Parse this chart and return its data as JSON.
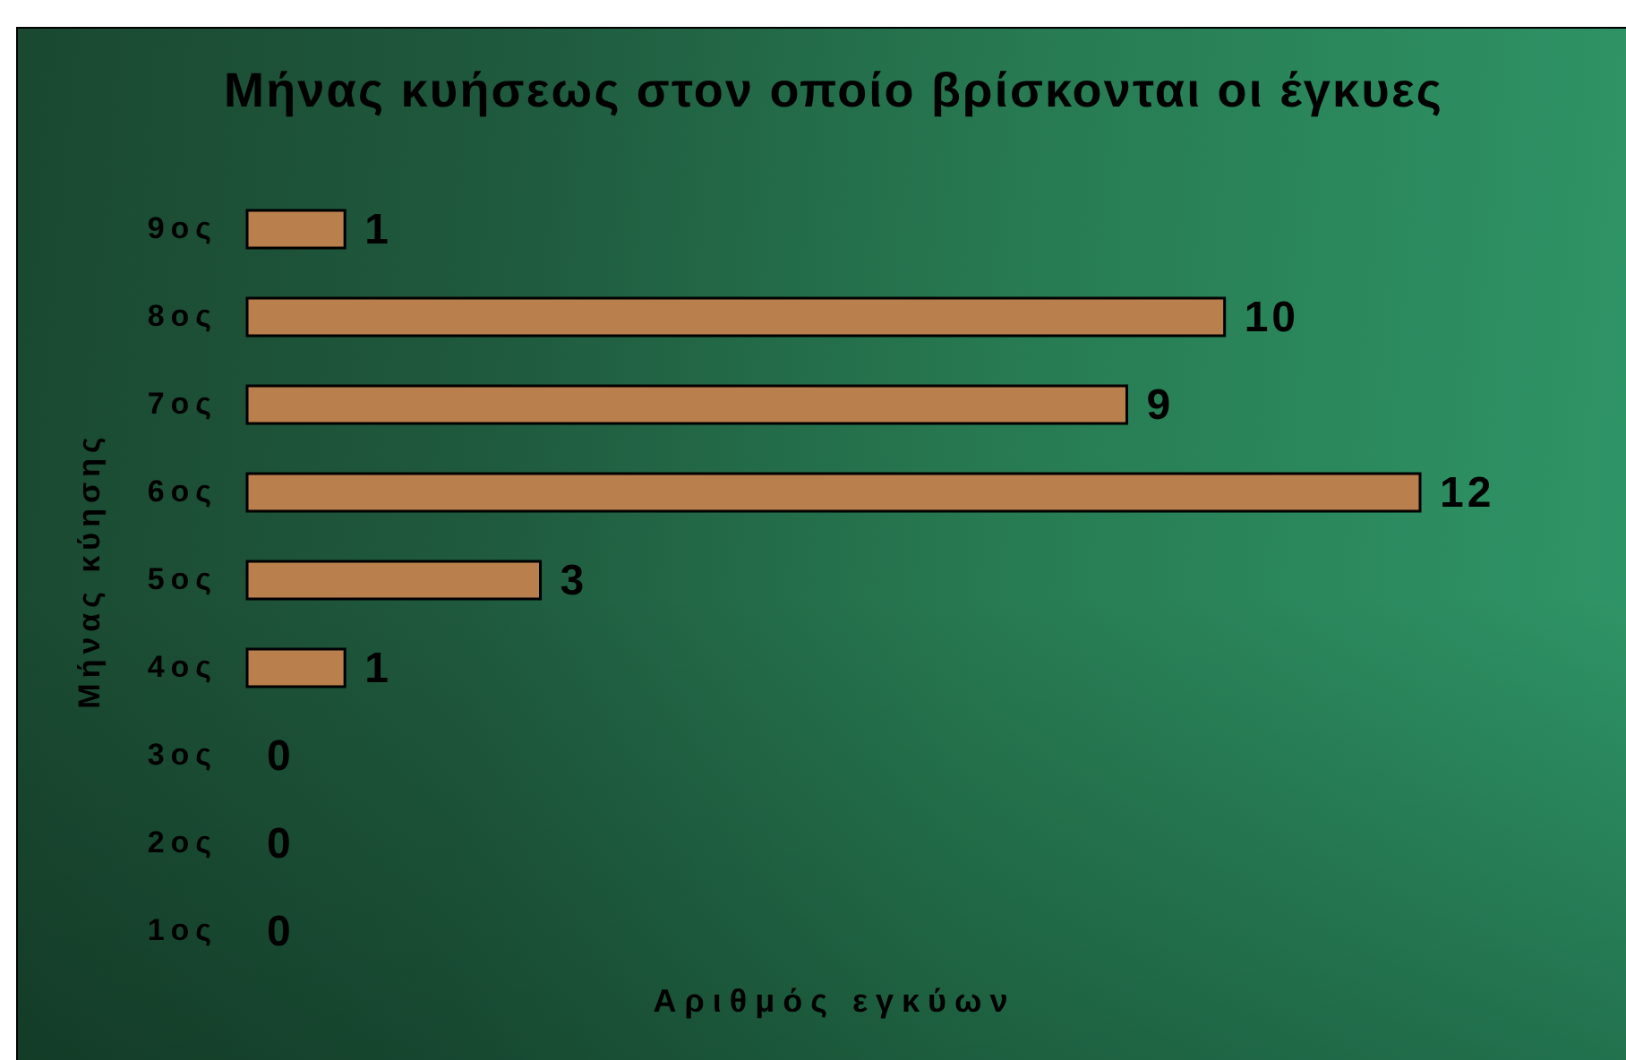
{
  "chart_data": {
    "type": "bar",
    "orientation": "horizontal",
    "title": "Μήνας κυήσεως στον οποίο βρίσκονται οι έγκυες",
    "xlabel": "Αριθμός εγκύων",
    "ylabel": "Μήνας κύησης",
    "categories": [
      "9ος",
      "8ος",
      "7ος",
      "6ος",
      "5ος",
      "4ος",
      "3ος",
      "2ος",
      "1ος"
    ],
    "values": [
      1,
      10,
      9,
      12,
      3,
      1,
      0,
      0,
      0
    ],
    "color": "#b97f4c",
    "data_labels": true,
    "tick_labels": "y"
  }
}
